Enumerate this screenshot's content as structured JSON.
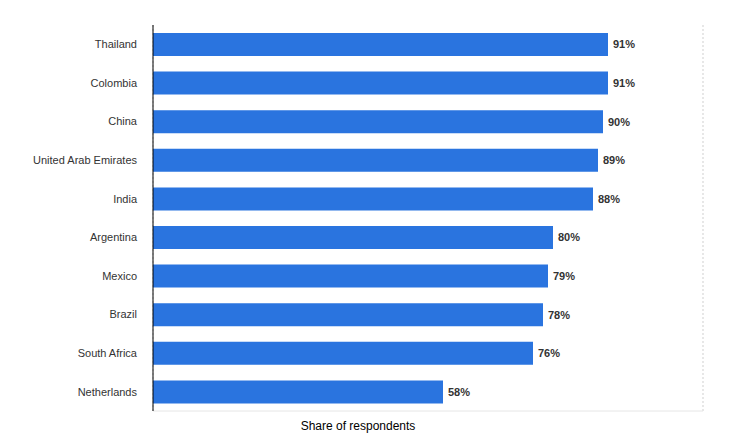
{
  "chart_data": {
    "type": "bar",
    "orientation": "horizontal",
    "x_label": "Share of respondents",
    "categories": [
      "Thailand",
      "Colombia",
      "China",
      "United Arab Emirates",
      "India",
      "Argentina",
      "Mexico",
      "Brazil",
      "South Africa",
      "Netherlands"
    ],
    "values": [
      91,
      91,
      90,
      89,
      88,
      80,
      79,
      78,
      76,
      58
    ],
    "value_labels": [
      "91%",
      "91%",
      "90%",
      "89%",
      "88%",
      "80%",
      "79%",
      "78%",
      "76%",
      "58%"
    ],
    "color": "#2a74df",
    "xlim": [
      0,
      110
    ],
    "xticks": [
      0,
      10,
      20,
      30,
      40,
      50,
      60,
      70,
      80,
      90,
      100,
      110
    ],
    "grid": true,
    "data_labels": true,
    "tick_labels": "y"
  }
}
